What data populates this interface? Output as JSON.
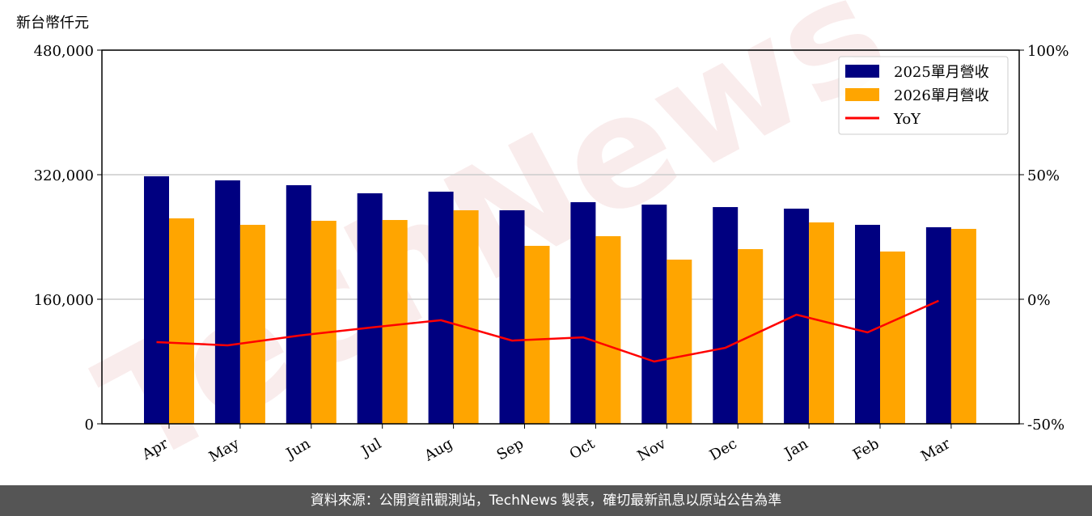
{
  "chart_data": {
    "type": "bar",
    "y_label": "新台幣仟元",
    "watermark": "TechNews",
    "source": "資料來源：公開資訊觀測站，TechNews 製表，確切最新訊息以原站公告為準",
    "categories": [
      "Apr",
      "May",
      "Jun",
      "Jul",
      "Aug",
      "Sep",
      "Oct",
      "Nov",
      "Dec",
      "Jan",
      "Feb",
      "Mar"
    ],
    "series": [
      {
        "name": "2025單月營收",
        "type": "bar",
        "color": "#000080",
        "values": [
          318000,
          312700,
          306500,
          296100,
          298200,
          274300,
          284700,
          281600,
          278400,
          276400,
          255600,
          252500
        ]
      },
      {
        "name": "2026單月營收",
        "type": "bar",
        "color": "#ffa500",
        "values": [
          263900,
          255600,
          260800,
          261800,
          274300,
          228600,
          241000,
          210900,
          224400,
          258700,
          221300,
          250400
        ]
      },
      {
        "name": "YoY",
        "type": "line",
        "axis": "y2",
        "color": "#ff0000",
        "values": [
          -17.2,
          -18.5,
          -14.6,
          -11.4,
          -8.4,
          -16.6,
          -15.3,
          -25.0,
          -19.5,
          -6.2,
          -13.3,
          -0.6
        ]
      }
    ],
    "ylim": [
      0,
      480000
    ],
    "yticks": [
      {
        "value": 0,
        "label": "0"
      },
      {
        "value": 160000,
        "label": "160,000"
      },
      {
        "value": 320000,
        "label": "320,000"
      },
      {
        "value": 480000,
        "label": "480,000"
      }
    ],
    "y2lim": [
      -50,
      100
    ],
    "y2ticks": [
      {
        "value": -50,
        "label": "-50%"
      },
      {
        "value": 0,
        "label": "0%"
      },
      {
        "value": 50,
        "label": "50%"
      },
      {
        "value": 100,
        "label": "100%"
      }
    ],
    "grid": true,
    "legend": "upper right"
  }
}
